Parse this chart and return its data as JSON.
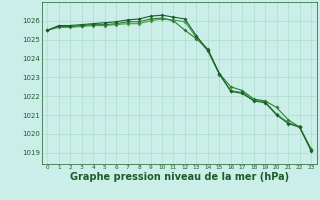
{
  "background_color": "#cceee8",
  "plot_bg_color": "#cceee8",
  "grid_color": "#aaddcc",
  "line_color_1": "#1a5c2a",
  "line_color_2": "#2e7d32",
  "line_color_3": "#43a047",
  "xlabel": "Graphe pression niveau de la mer (hPa)",
  "xlabel_fontsize": 7,
  "ylabel_ticks": [
    1019,
    1020,
    1021,
    1022,
    1023,
    1024,
    1025,
    1026
  ],
  "ylim": [
    1018.4,
    1027.0
  ],
  "xlim": [
    -0.5,
    23.5
  ],
  "xticks": [
    0,
    1,
    2,
    3,
    4,
    5,
    6,
    7,
    8,
    9,
    10,
    11,
    12,
    13,
    14,
    15,
    16,
    17,
    18,
    19,
    20,
    21,
    22,
    23
  ],
  "series1": [
    1025.5,
    1025.65,
    1025.65,
    1025.7,
    1025.75,
    1025.75,
    1025.8,
    1025.85,
    1025.85,
    1026.0,
    1026.1,
    1026.05,
    1025.95,
    1025.1,
    1024.4,
    1023.15,
    1022.3,
    1022.2,
    1021.8,
    1021.7,
    1021.05,
    1020.6,
    1020.4,
    1019.15
  ],
  "series2": [
    1025.5,
    1025.7,
    1025.7,
    1025.75,
    1025.8,
    1025.8,
    1025.85,
    1025.95,
    1025.95,
    1026.1,
    1026.15,
    1026.0,
    1025.5,
    1025.05,
    1024.5,
    1023.2,
    1022.5,
    1022.3,
    1021.85,
    1021.75,
    1021.4,
    1020.75,
    1020.35,
    1019.2
  ],
  "series3": [
    1025.5,
    1025.75,
    1025.75,
    1025.8,
    1025.85,
    1025.9,
    1025.95,
    1026.05,
    1026.1,
    1026.25,
    1026.3,
    1026.2,
    1026.1,
    1025.2,
    1024.45,
    1023.2,
    1022.25,
    1022.15,
    1021.75,
    1021.65,
    1021.0,
    1020.55,
    1020.35,
    1019.1
  ]
}
